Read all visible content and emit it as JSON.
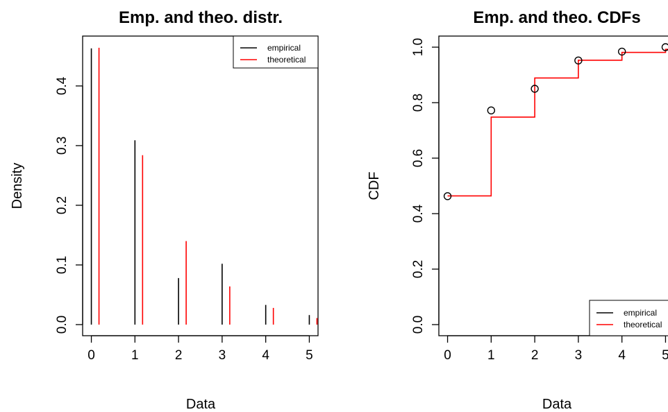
{
  "chart_data": [
    {
      "type": "bar",
      "title": "Emp. and theo. distr.",
      "xlabel": "Data",
      "ylabel": "Density",
      "x": [
        0,
        1,
        2,
        3,
        4,
        5
      ],
      "xlim": [
        -0.2,
        5.2
      ],
      "ylim": [
        0,
        0.465
      ],
      "xticks": [
        "0",
        "1",
        "2",
        "3",
        "4",
        "5"
      ],
      "yticks": [
        "0.0",
        "0.1",
        "0.2",
        "0.3",
        "0.4"
      ],
      "legend_placement": "top-right",
      "series": [
        {
          "name": "empirical",
          "color": "#000000",
          "values": [
            0.463,
            0.309,
            0.078,
            0.102,
            0.033,
            0.016
          ]
        },
        {
          "name": "theoretical",
          "color": "#ff0000",
          "values": [
            0.464,
            0.284,
            0.14,
            0.064,
            0.028,
            0.011
          ]
        }
      ]
    },
    {
      "type": "line",
      "title": "Emp. and theo. CDFs",
      "xlabel": "Data",
      "ylabel": "CDF",
      "xlim": [
        -0.2,
        5.2
      ],
      "ylim": [
        0,
        1.0
      ],
      "xticks": [
        "0",
        "1",
        "2",
        "3",
        "4",
        "5"
      ],
      "yticks": [
        "0.0",
        "0.2",
        "0.4",
        "0.6",
        "0.8",
        "1.0"
      ],
      "legend_placement": "bottom-right",
      "series": [
        {
          "name": "empirical",
          "color": "#000000",
          "x": [
            0,
            1,
            2,
            3,
            4,
            5
          ],
          "values": [
            0.463,
            0.772,
            0.85,
            0.952,
            0.984,
            1.0
          ]
        },
        {
          "name": "theoretical",
          "color": "#ff0000",
          "x": [
            0,
            1,
            2,
            3,
            4,
            5
          ],
          "values": [
            0.464,
            0.748,
            0.889,
            0.953,
            0.981,
            0.992
          ]
        }
      ]
    }
  ]
}
